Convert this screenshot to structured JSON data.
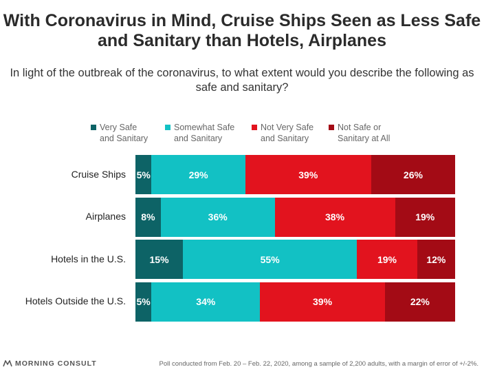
{
  "title": "With Coronavirus in Mind, Cruise Ships Seen as Less Safe and Sanitary than Hotels, Airplanes",
  "subtitle": "In light of the outbreak of the coronavirus, to what extent would you describe the following as safe and sanitary?",
  "colors": {
    "very_safe": "#0d6366",
    "somewhat_safe": "#12c1c4",
    "not_very_safe": "#e2131e",
    "not_safe": "#a30b15"
  },
  "chart_data": {
    "type": "bar",
    "orientation": "horizontal",
    "stacked": true,
    "percent": true,
    "categories": [
      "Cruise Ships",
      "Airplanes",
      "Hotels in the U.S.",
      "Hotels Outside the U.S."
    ],
    "series": [
      {
        "name": "Very Safe and Sanitary",
        "values": [
          5,
          8,
          15,
          5
        ]
      },
      {
        "name": "Somewhat Safe and Sanitary",
        "values": [
          29,
          36,
          55,
          34
        ]
      },
      {
        "name": "Not Very Safe and Sanitary",
        "values": [
          39,
          38,
          19,
          39
        ]
      },
      {
        "name": "Not Safe or Sanitary at All",
        "values": [
          26,
          19,
          12,
          22
        ]
      }
    ],
    "legend_position": "top"
  },
  "legend": [
    {
      "line1": "Very Safe",
      "line2": "and Sanitary"
    },
    {
      "line1": "Somewhat Safe",
      "line2": "and Sanitary"
    },
    {
      "line1": "Not Very Safe",
      "line2": "and Sanitary"
    },
    {
      "line1": "Not Safe or",
      "line2": "Sanitary at All"
    }
  ],
  "brand": "MORNING CONSULT",
  "footnote": "Poll conducted from Feb. 20 – Feb. 22, 2020, among a sample of 2,200 adults, with a margin of error of +/-2%."
}
